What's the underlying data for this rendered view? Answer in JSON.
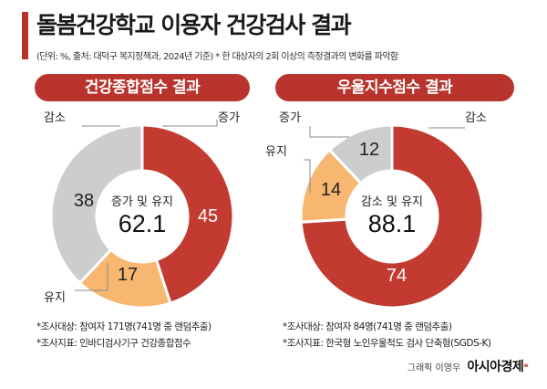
{
  "header": {
    "title": "돌봄건강학교 이용자 건강검사 결과",
    "subtitle": "(단위: %, 출처: 대덕구 복지정책과, 2024년 기준) * 한 대상자의 2회 이상의 측정결과의 변화를 파악함"
  },
  "colors": {
    "accent": "#b8342c",
    "red": "#c23a30",
    "orange": "#f7b771",
    "gray": "#cdcdcd"
  },
  "chart_data": [
    {
      "type": "pie",
      "title": "건강종합점수 결과",
      "center_label": "증가 및 유지",
      "center_value": "62.1",
      "slices": [
        {
          "label": "증가",
          "value": 45,
          "color": "#c23a30"
        },
        {
          "label": "유지",
          "value": 17,
          "color": "#f7b771"
        },
        {
          "label": "감소",
          "value": 38,
          "color": "#cdcdcd"
        }
      ],
      "notes": [
        "*조사대상: 참여자 171명(741명 중 랜덤추출)",
        "*조사지표: 인바디검사기구 건강종합점수"
      ]
    },
    {
      "type": "pie",
      "title": "우울지수점수 결과",
      "center_label": "감소 및 유지",
      "center_value": "88.1",
      "slices": [
        {
          "label": "감소",
          "value": 74,
          "color": "#c23a30"
        },
        {
          "label": "유지",
          "value": 14,
          "color": "#f7b771"
        },
        {
          "label": "증가",
          "value": 12,
          "color": "#cdcdcd"
        }
      ],
      "notes": [
        "*조사대상: 참여자 84명(741명 중 랜덤추출)",
        "*조사지표: 한국형 노인우울척도 검사 단축형(SGDS-K)"
      ]
    }
  ],
  "credit": {
    "prefix": "그래픽 이영우",
    "brand": "아시아경제"
  }
}
